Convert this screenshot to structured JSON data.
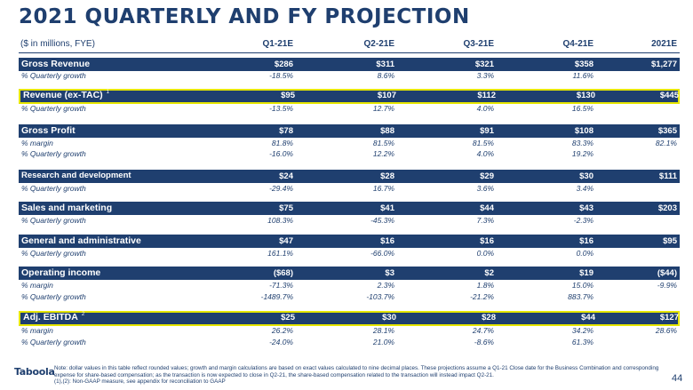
{
  "title": "2021 QUARTERLY AND FY PROJECTION",
  "units": "($ in millions, FYE)",
  "columns": [
    "Q1-21E",
    "Q2-21E",
    "Q3-21E",
    "Q4-21E",
    "2021E"
  ],
  "sections": [
    {
      "label": "Gross Revenue",
      "sup": "",
      "values": [
        "$286",
        "$311",
        "$321",
        "$358",
        "$1,277"
      ],
      "subs": [
        {
          "label": "% Quarterly growth",
          "values": [
            "-18.5%",
            "8.6%",
            "3.3%",
            "11.6%",
            ""
          ]
        }
      ]
    },
    {
      "label": "Revenue (ex-TAC)",
      "sup": "1",
      "values": [
        "$95",
        "$107",
        "$112",
        "$130",
        "$445"
      ],
      "subs": [
        {
          "label": "% Quarterly growth",
          "values": [
            "-13.5%",
            "12.7%",
            "4.0%",
            "16.5%",
            ""
          ]
        }
      ]
    },
    {
      "label": "Gross Profit",
      "sup": "",
      "values": [
        "$78",
        "$88",
        "$91",
        "$108",
        "$365"
      ],
      "subs": [
        {
          "label": "% margin",
          "values": [
            "81.8%",
            "81.5%",
            "81.5%",
            "83.3%",
            "82.1%"
          ]
        },
        {
          "label": "% Quarterly growth",
          "values": [
            "-16.0%",
            "12.2%",
            "4.0%",
            "19.2%",
            ""
          ]
        }
      ]
    },
    {
      "label": "Research and development",
      "sup": "",
      "values": [
        "$24",
        "$28",
        "$29",
        "$30",
        "$111"
      ],
      "subs": [
        {
          "label": "% Quarterly growth",
          "values": [
            "-29.4%",
            "16.7%",
            "3.6%",
            "3.4%",
            ""
          ]
        }
      ]
    },
    {
      "label": "Sales and marketing",
      "sup": "",
      "values": [
        "$75",
        "$41",
        "$44",
        "$43",
        "$203"
      ],
      "subs": [
        {
          "label": "% Quarterly growth",
          "values": [
            "108.3%",
            "-45.3%",
            "7.3%",
            "-2.3%",
            ""
          ]
        }
      ]
    },
    {
      "label": "General and administrative",
      "sup": "",
      "values": [
        "$47",
        "$16",
        "$16",
        "$16",
        "$95"
      ],
      "subs": [
        {
          "label": "% Quarterly growth",
          "values": [
            "161.1%",
            "-66.0%",
            "0.0%",
            "0.0%",
            ""
          ]
        }
      ]
    },
    {
      "label": "Operating income",
      "sup": "",
      "values": [
        "($68)",
        "$3",
        "$2",
        "$19",
        "($44)"
      ],
      "subs": [
        {
          "label": "% margin",
          "values": [
            "-71.3%",
            "2.3%",
            "1.8%",
            "15.0%",
            "-9.9%"
          ]
        },
        {
          "label": "% Quarterly growth",
          "values": [
            "-1489.7%",
            "-103.7%",
            "-21.2%",
            "883.7%",
            ""
          ]
        }
      ]
    },
    {
      "label": "Adj. EBITDA",
      "sup": "2",
      "values": [
        "$25",
        "$30",
        "$28",
        "$44",
        "$127"
      ],
      "subs": [
        {
          "label": "% margin",
          "values": [
            "26.2%",
            "28.1%",
            "24.7%",
            "34.2%",
            "28.6%"
          ]
        },
        {
          "label": "% Quarterly growth",
          "values": [
            "-24.0%",
            "21.0%",
            "-8.6%",
            "61.3%",
            ""
          ]
        }
      ]
    }
  ],
  "logo": "Taboola",
  "note": "Note: dollar values in this table reflect rounded values; growth and margin calculations are based on exact values calculated to nine decimal places. These projections assume a Q1-21 Close date for the Business Combination and corresponding expense for share-based compensation; as the transaction is now expected to close in Q2-21, the share-based compensation related to the transaction will instead impact Q2-21.",
  "note2": "(1),(2): Non-GAAP measure, see appendix for reconciliation to GAAP",
  "page_number": "44"
}
